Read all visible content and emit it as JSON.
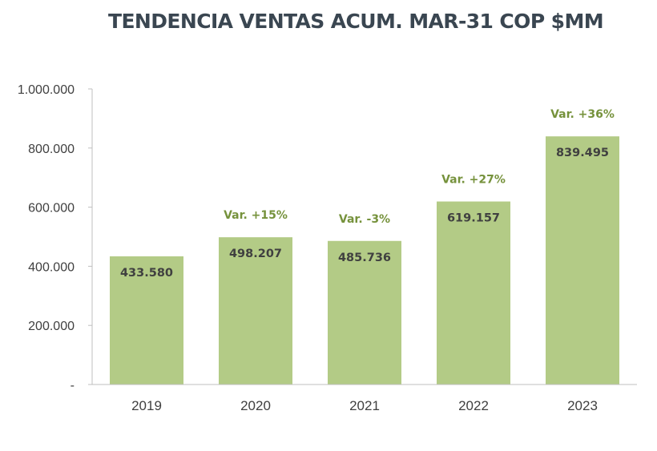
{
  "chart_data": {
    "type": "bar",
    "title": "TENDENCIA VENTAS ACUM. MAR-31 COP $MM",
    "categories": [
      "2019",
      "2020",
      "2021",
      "2022",
      "2023"
    ],
    "values": [
      433580,
      498207,
      485736,
      619157,
      839495
    ],
    "value_labels": [
      "433.580",
      "498.207",
      "485.736",
      "619.157",
      "839.495"
    ],
    "variation_labels": [
      "",
      "Var. +15%",
      "Var. -3%",
      "Var. +27%",
      "Var. +36%"
    ],
    "ylim": [
      0,
      1000000
    ],
    "y_ticks": [
      0,
      200000,
      400000,
      600000,
      800000,
      1000000
    ],
    "y_tick_labels": [
      "-",
      "200.000",
      "400.000",
      "600.000",
      "800.000",
      "1.000.000"
    ],
    "xlabel": "",
    "ylabel": "",
    "grid": false,
    "legend": "none",
    "colors": {
      "bar": "#b3cb86",
      "variation_text": "#76923c",
      "data_label_text": "#404040",
      "axis": "#bfbfbf",
      "title": "#3a4651"
    }
  }
}
